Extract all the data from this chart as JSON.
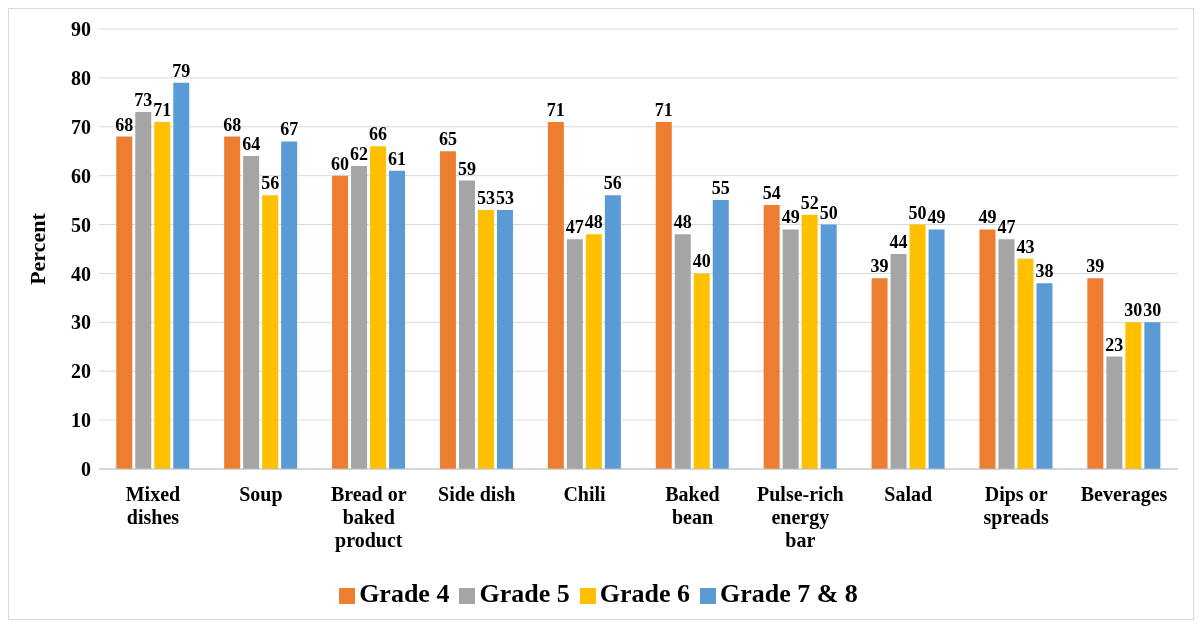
{
  "chart_data": {
    "type": "bar",
    "ylabel": "Percent",
    "categories": [
      "Mixed dishes",
      "Soup",
      "Bread or baked product",
      "Side dish",
      "Chili",
      "Baked bean",
      "Pulse-rich energy bar",
      "Salad",
      "Dips or spreads",
      "Beverages"
    ],
    "series": [
      {
        "name": "Grade 4",
        "color": "#ed7d31",
        "values": [
          68,
          68,
          60,
          65,
          71,
          71,
          54,
          39,
          49,
          39
        ]
      },
      {
        "name": "Grade 5",
        "color": "#a5a5a5",
        "values": [
          73,
          64,
          62,
          59,
          47,
          48,
          49,
          44,
          47,
          23
        ]
      },
      {
        "name": "Grade 6",
        "color": "#ffc000",
        "values": [
          71,
          56,
          66,
          53,
          48,
          40,
          52,
          50,
          43,
          30
        ]
      },
      {
        "name": "Grade 7 & 8",
        "color": "#5b9bd5",
        "values": [
          79,
          67,
          61,
          53,
          56,
          55,
          50,
          49,
          38,
          30
        ]
      }
    ],
    "ylim": [
      0,
      90
    ],
    "yticks": [
      0,
      10,
      20,
      30,
      40,
      50,
      60,
      70,
      80,
      90
    ],
    "grid": "y",
    "legend": "bottom",
    "data_labels": true
  }
}
